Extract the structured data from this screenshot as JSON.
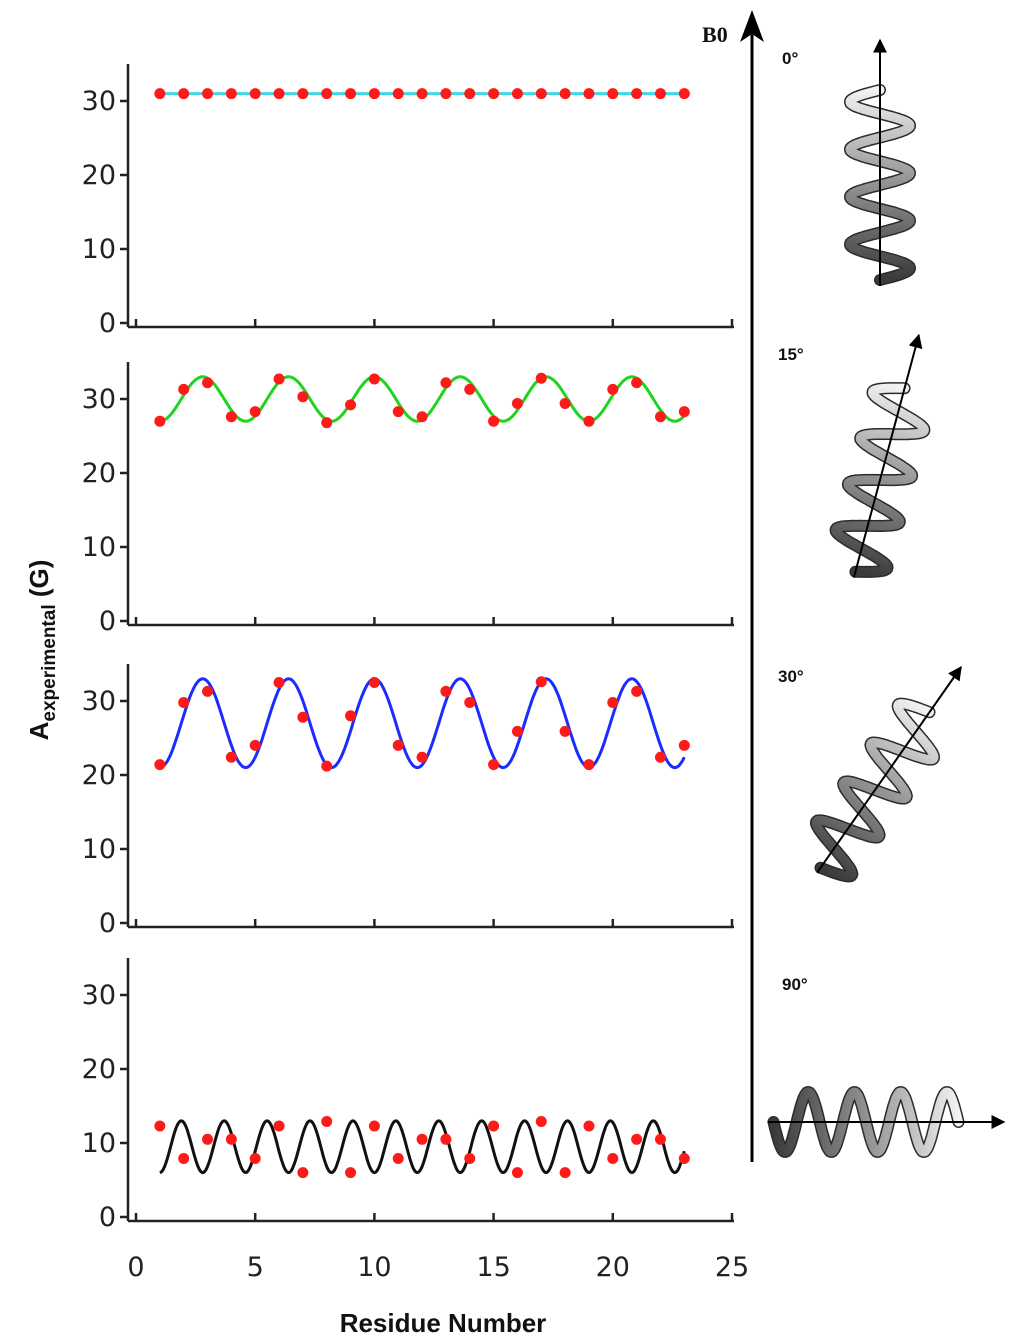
{
  "ylabel_main": "A",
  "ylabel_sub": "experimental",
  "ylabel_unit": " (G)",
  "xlabel": "Residue Number",
  "b0_label": "B",
  "b0_sub": "0",
  "x_ticks": [
    "0",
    "5",
    "10",
    "15",
    "20",
    "25"
  ],
  "y_ticks": [
    "0",
    "10",
    "20",
    "30"
  ],
  "angles": [
    "0°",
    "15°",
    "30°",
    "90°"
  ],
  "colors": {
    "points": "#ff1a1a",
    "panel1": "#41d8e6",
    "panel2": "#1fd41f",
    "panel3": "#1a2cff",
    "panel4": "#111111"
  },
  "chart_data": [
    {
      "type": "scatter",
      "title": "",
      "xlabel": "Residue Number",
      "ylabel": "A experimental (G)",
      "xlim": [
        0,
        25
      ],
      "ylim": [
        0,
        35
      ],
      "fit_line": {
        "color": "#41d8e6",
        "mean": 31,
        "amplitude": 0
      },
      "series": [
        {
          "x": [
            1,
            2,
            3,
            4,
            5,
            6,
            7,
            8,
            9,
            10,
            11,
            12,
            13,
            14,
            15,
            16,
            17,
            18,
            19,
            20,
            21,
            22,
            23
          ],
          "y": [
            31,
            31,
            31,
            31,
            31,
            31,
            31,
            31,
            31,
            31,
            31,
            31,
            31,
            31,
            31,
            31,
            31,
            31,
            31,
            31,
            31,
            31,
            31
          ]
        }
      ]
    },
    {
      "type": "scatter",
      "title": "",
      "xlabel": "Residue Number",
      "ylabel": "A experimental (G)",
      "xlim": [
        0,
        25
      ],
      "ylim": [
        0,
        35
      ],
      "fit_line": {
        "color": "#1fd41f",
        "mean": 30,
        "amplitude": 3,
        "period": 3.6
      },
      "series": [
        {
          "x": [
            1,
            2,
            3,
            4,
            5,
            6,
            7,
            8,
            9,
            10,
            11,
            12,
            13,
            14,
            15,
            16,
            17,
            18,
            19,
            20,
            21,
            22,
            23
          ],
          "y": [
            27,
            31.3,
            32.2,
            27.6,
            28.3,
            32.7,
            30.3,
            26.8,
            29.2,
            32.7,
            28.3,
            27.6,
            32.2,
            31.3,
            27,
            29.4,
            32.8,
            29.4,
            27,
            31.3,
            32.2,
            27.6,
            28.3
          ]
        }
      ]
    },
    {
      "type": "scatter",
      "title": "",
      "xlabel": "Residue Number",
      "ylabel": "A experimental (G)",
      "xlim": [
        0,
        25
      ],
      "ylim": [
        0,
        35
      ],
      "fit_line": {
        "color": "#1a2cff",
        "mean": 27,
        "amplitude": 6,
        "period": 3.6
      },
      "series": [
        {
          "x": [
            1,
            2,
            3,
            4,
            5,
            6,
            7,
            8,
            9,
            10,
            11,
            12,
            13,
            14,
            15,
            16,
            17,
            18,
            19,
            20,
            21,
            22,
            23
          ],
          "y": [
            21.4,
            29.8,
            31.3,
            22.4,
            24,
            32.5,
            27.8,
            21.2,
            28,
            32.5,
            24,
            22.4,
            31.3,
            29.8,
            21.4,
            25.9,
            32.6,
            25.9,
            21.4,
            29.8,
            31.3,
            22.4,
            24
          ]
        }
      ]
    },
    {
      "type": "scatter",
      "title": "",
      "xlabel": "Residue Number",
      "ylabel": "A experimental (G)",
      "xlim": [
        0,
        25
      ],
      "ylim": [
        0,
        35
      ],
      "fit_line": {
        "color": "#111111",
        "mean": 9.5,
        "amplitude": 3.5,
        "period": 1.8
      },
      "series": [
        {
          "x": [
            1,
            2,
            3,
            4,
            5,
            6,
            7,
            8,
            9,
            10,
            11,
            12,
            13,
            14,
            15,
            16,
            17,
            18,
            19,
            20,
            21,
            22,
            23
          ],
          "y": [
            12.3,
            7.9,
            10.5,
            10.5,
            7.9,
            12.3,
            6,
            12.9,
            6,
            12.3,
            7.9,
            10.5,
            10.5,
            7.9,
            12.3,
            6,
            12.9,
            6,
            12.3,
            7.9,
            10.5,
            10.5,
            7.9
          ]
        }
      ]
    }
  ]
}
